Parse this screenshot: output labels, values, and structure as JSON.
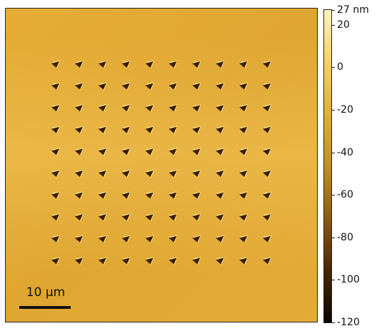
{
  "image": {
    "description_colors": {
      "background": "#e0a833",
      "background_light": "#edbb4a",
      "pit_shadow": "#3a1e00",
      "pit_highlight": "#fff0a0"
    },
    "grid": {
      "rows": 10,
      "cols": 10
    }
  },
  "scale_bar": {
    "label": "10 µm"
  },
  "colorbar": {
    "gradient": [
      "#0a0500",
      "#4a2600",
      "#8e5a12",
      "#c38d28",
      "#e3ad3a",
      "#f5d06a",
      "#fff4b8"
    ],
    "ticks": [
      {
        "label": "27 nm",
        "value": 27
      },
      {
        "label": "20",
        "value": 20
      },
      {
        "label": "0",
        "value": 0
      },
      {
        "label": "-20",
        "value": -20
      },
      {
        "label": "-40",
        "value": -40
      },
      {
        "label": "-60",
        "value": -60
      },
      {
        "label": "-80",
        "value": -80
      },
      {
        "label": "-100",
        "value": -100
      },
      {
        "label": "-120",
        "value": -120
      }
    ],
    "range": [
      -120,
      27
    ]
  }
}
